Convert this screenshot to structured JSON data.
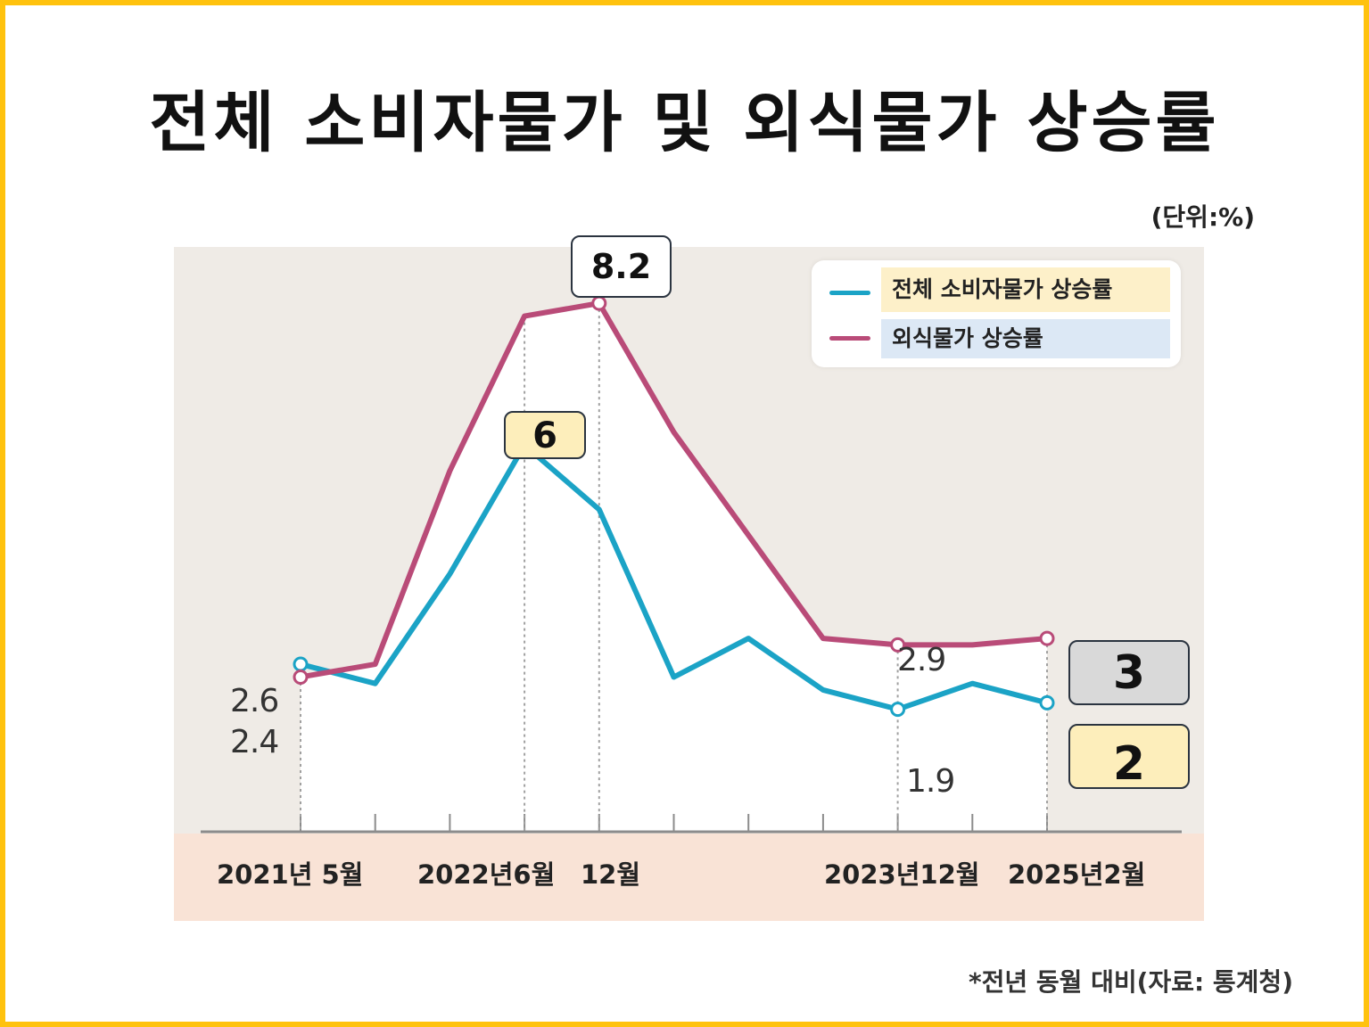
{
  "title": "전체 소비자물가 및 외식물가 상승률",
  "unit": "(단위:%)",
  "source": "*전년 동월 대비(자료: 통계청)",
  "colors": {
    "frame": "#ffc20e",
    "consumer_line": "#1ba3c6",
    "dining_line": "#b94b78",
    "plot_bg": "#efebe6",
    "axis_band": "#f9e3d6",
    "legend_consumer_bg": "#fdf0c9",
    "legend_dining_bg": "#dce8f5"
  },
  "chart_data": {
    "type": "line",
    "x": [
      "2021년 5월",
      "",
      "",
      "2022년6월",
      "12월",
      "",
      "",
      "",
      "2023년12월",
      "",
      "2025년2월"
    ],
    "x_tick_labels": [
      "2021년 5월",
      "2022년6월",
      "12월",
      "2023년12월",
      "2025년2월"
    ],
    "ylim": [
      0,
      9.5
    ],
    "grid": false,
    "legend_position": "top-right",
    "series": [
      {
        "name": "전체 소비자물가 상승률",
        "color": "#1ba3c6",
        "values": [
          2.6,
          2.3,
          4.0,
          6.0,
          5.0,
          2.4,
          3.0,
          2.2,
          1.9,
          2.3,
          2.0
        ]
      },
      {
        "name": "외식물가 상승률",
        "color": "#b94b78",
        "values": [
          2.4,
          2.6,
          5.6,
          8.0,
          8.2,
          6.2,
          4.6,
          3.0,
          2.9,
          2.9,
          3.0
        ]
      }
    ],
    "value_labels": [
      {
        "series": 0,
        "index": 0,
        "text": "2.6"
      },
      {
        "series": 1,
        "index": 0,
        "text": "2.4"
      },
      {
        "series": 1,
        "index": 8,
        "text": "2.9"
      },
      {
        "series": 0,
        "index": 8,
        "text": "1.9"
      }
    ],
    "callouts": [
      {
        "series": 1,
        "index": 4,
        "text": "8.2"
      },
      {
        "series": 0,
        "index": 3,
        "text": "6"
      },
      {
        "series": 1,
        "index": 10,
        "text": "3"
      },
      {
        "series": 0,
        "index": 10,
        "text": "2"
      }
    ]
  }
}
